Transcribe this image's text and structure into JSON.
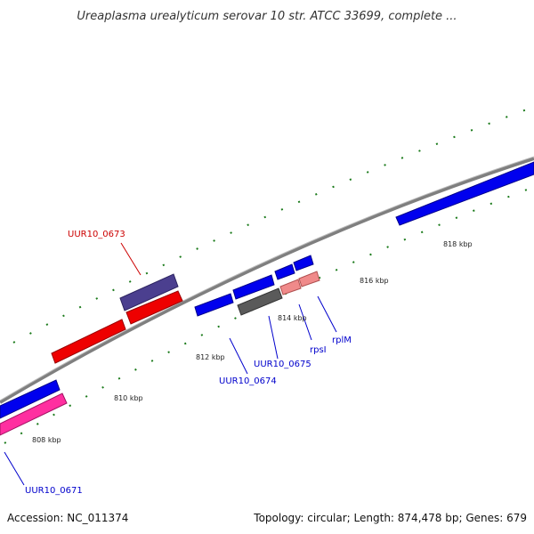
{
  "title": "Ureaplasma urealyticum serovar 10 str. ATCC 33699, complete ...",
  "footer": {
    "accession": "Accession: NC_011374",
    "stats": "Topology: circular; Length: 874,478 bp; Genes: 679"
  },
  "ticks": [
    {
      "label": "808 kbp"
    },
    {
      "label": "810 kbp"
    },
    {
      "label": "812 kbp"
    },
    {
      "label": "814 kbp"
    },
    {
      "label": "816 kbp"
    },
    {
      "label": "818 kbp"
    }
  ],
  "gene_labels": [
    {
      "text": "UUR10_0673",
      "color": "#cc0000"
    },
    {
      "text": "UUR10_0671",
      "color": "#0000cc"
    },
    {
      "text": "UUR10_0674",
      "color": "#0000cc"
    },
    {
      "text": "UUR10_0675",
      "color": "#0000cc"
    },
    {
      "text": "rpsI",
      "color": "#0000cc"
    },
    {
      "text": "rplM",
      "color": "#0000cc"
    }
  ],
  "colors": {
    "backbone": "#7f7f7f",
    "tick": "#1a7a1a",
    "gene_blue": "#0000ee",
    "gene_red": "#ee0000",
    "gene_pink": "#ff2fa0",
    "gene_purple": "#4b3f8f",
    "gene_grey": "#5a5a5a",
    "gene_salmon": "#f08a8a"
  }
}
